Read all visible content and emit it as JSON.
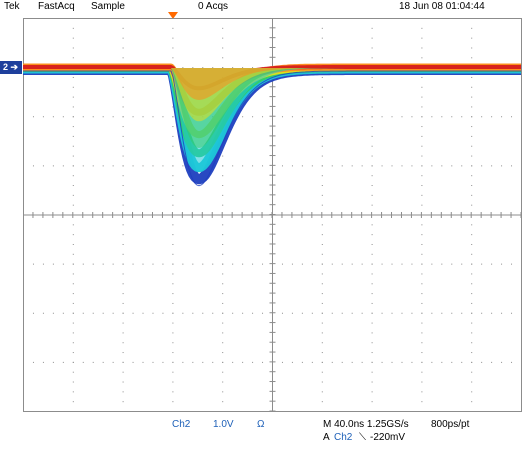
{
  "header": {
    "brand": "Tek",
    "mode": "FastAcq",
    "acq_mode": "Sample",
    "acqs": "0 Acqs",
    "datetime": "18 Jun 08 01:04:44"
  },
  "channel_marker": "2",
  "channel": {
    "name": "Ch2",
    "scale": "1.0V",
    "coupling": "Ω"
  },
  "timebase": {
    "main": "M 40.0ns 1.25GS/s",
    "resolution": "800ps/pt"
  },
  "trigger": {
    "prefix": "A",
    "source": "Ch2",
    "slope_symbol": "⟍",
    "level": "-220mV"
  },
  "colors": {
    "trace_red": "#d61e1e",
    "trace_orange": "#ff8a1a",
    "trace_yellow": "#e6e01a",
    "trace_green": "#33cc66",
    "trace_cyan": "#1ec8d8",
    "trace_blue": "#1e3fbf",
    "grid": "#8c8c8c",
    "trigger_marker": "#ff6a00",
    "label_blue": "#1e60b8"
  }
}
